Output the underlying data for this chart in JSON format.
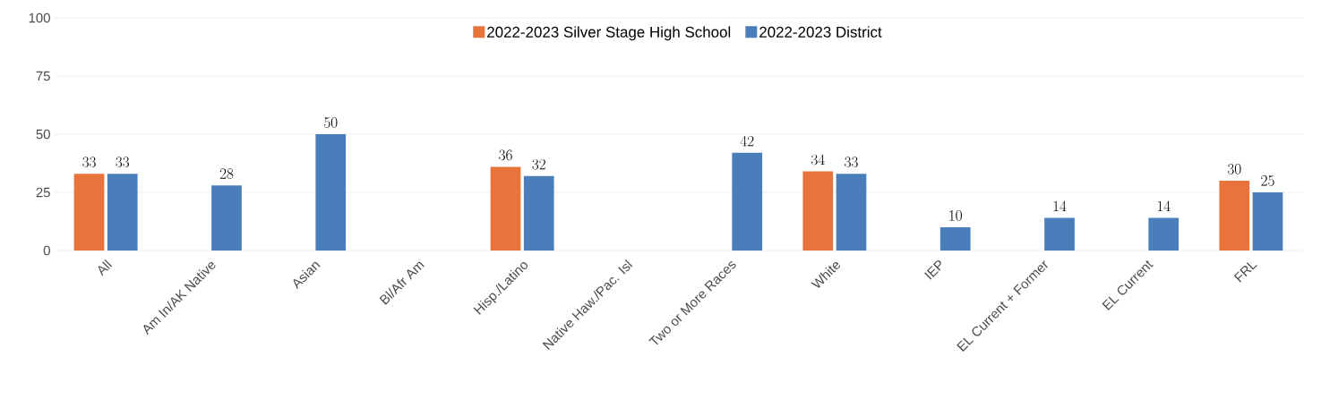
{
  "chart_data": {
    "type": "bar",
    "categories": [
      "All",
      "Am In/AK Native",
      "Asian",
      "Bl/Afr Am",
      "Hisp./Latino",
      "Native Haw./Pac. Isl",
      "Two or More Races",
      "White",
      "IEP",
      "EL Current + Former",
      "EL Current",
      "FRL"
    ],
    "series": [
      {
        "name": "2022-2023 Silver Stage High School",
        "color": "#e8743b",
        "values": [
          33,
          null,
          null,
          null,
          36,
          null,
          null,
          34,
          null,
          null,
          null,
          30
        ]
      },
      {
        "name": "2022-2023 District",
        "color": "#4a7ebb",
        "values": [
          33,
          28,
          50,
          null,
          32,
          null,
          42,
          33,
          10,
          14,
          14,
          25
        ]
      }
    ],
    "ylim": [
      0,
      100
    ],
    "yticks": [
      0,
      25,
      50,
      75,
      100
    ],
    "grid": "y",
    "legend": "top",
    "data_labels": true
  }
}
